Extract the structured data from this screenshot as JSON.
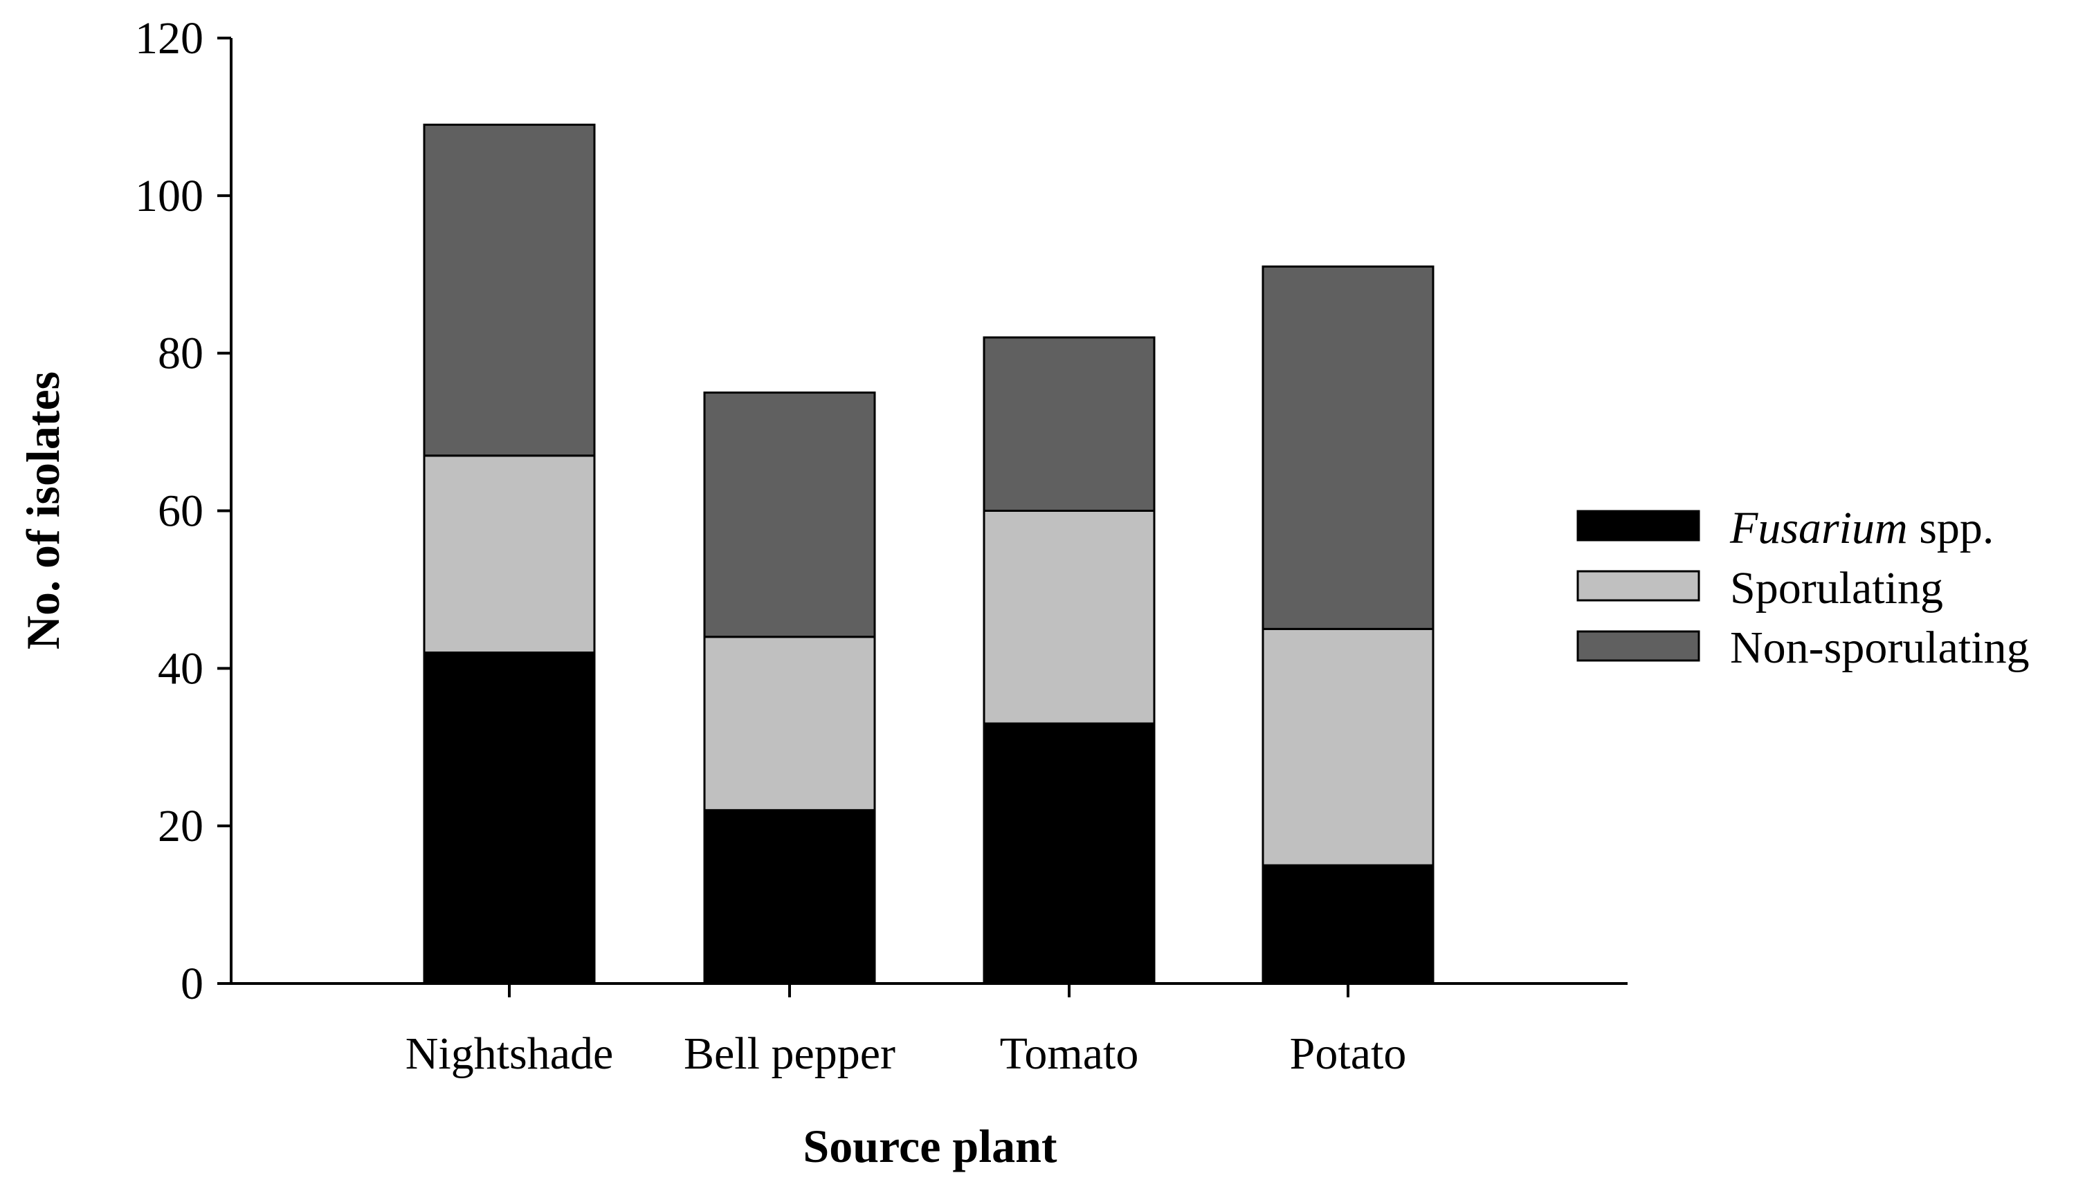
{
  "chart_data": {
    "type": "bar",
    "stacked": true,
    "categories": [
      "Nightshade",
      "Bell pepper",
      "Tomato",
      "Potato"
    ],
    "series": [
      {
        "name": "Fusarium spp.",
        "name_italic": "Fusarium",
        "name_rest": " spp.",
        "color": "#000000",
        "values": [
          42,
          22,
          33,
          15
        ]
      },
      {
        "name": "Sporulating",
        "color": "#c0c0c0",
        "values": [
          25,
          22,
          27,
          30
        ]
      },
      {
        "name": "Non-sporulating",
        "color": "#606060",
        "values": [
          42,
          31,
          22,
          46
        ]
      }
    ],
    "xlabel": "Source plant",
    "ylabel": "No. of isolates",
    "ylim": [
      0,
      120
    ],
    "yticks": [
      "0",
      "20",
      "40",
      "60",
      "80",
      "100",
      "120"
    ],
    "grid": false,
    "legend": "right"
  }
}
